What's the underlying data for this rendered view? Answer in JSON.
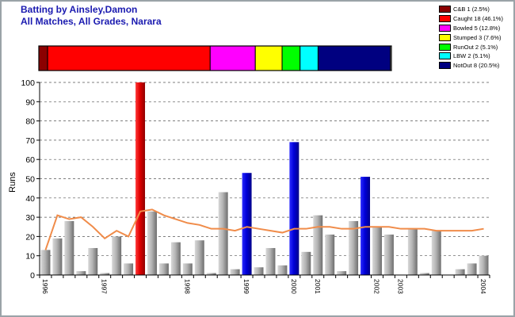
{
  "header": {
    "title_line1": "Batting by Ainsley,Damon",
    "title_line2": "All Matches, All Grades, Narara"
  },
  "legend": [
    {
      "label": "C&B 1 (2.5%)",
      "color": "#8b0000"
    },
    {
      "label": "Caught 18 (46.1%)",
      "color": "#ff0000"
    },
    {
      "label": "Bowled 5 (12.8%)",
      "color": "#ff00ff"
    },
    {
      "label": "Stumped 3 (7.6%)",
      "color": "#ffff00"
    },
    {
      "label": "RunOut 2 (5.1%)",
      "color": "#00ff00"
    },
    {
      "label": "LBW 2 (5.1%)",
      "color": "#00ffff"
    },
    {
      "label": "NotOut 8 (20.5%)",
      "color": "#000080"
    }
  ],
  "chart_data": {
    "type": "bar",
    "ylabel": "Runs",
    "ylim": [
      0,
      100
    ],
    "yticks": [
      0,
      10,
      20,
      30,
      40,
      50,
      60,
      70,
      80,
      90,
      100
    ],
    "grid": "horizontal dashed",
    "dismissal_bar": [
      {
        "kind": "C&B",
        "pct": 2.5,
        "color": "#8b0000"
      },
      {
        "kind": "Caught",
        "pct": 46.1,
        "color": "#ff0000"
      },
      {
        "kind": "Bowled",
        "pct": 12.8,
        "color": "#ff00ff"
      },
      {
        "kind": "Stumped",
        "pct": 7.6,
        "color": "#ffff00"
      },
      {
        "kind": "RunOut",
        "pct": 5.1,
        "color": "#00ff00"
      },
      {
        "kind": "LBW",
        "pct": 5.1,
        "color": "#00ffff"
      },
      {
        "kind": "NotOut",
        "pct": 20.5,
        "color": "#000080"
      }
    ],
    "innings": [
      {
        "runs": 13,
        "type": "gray"
      },
      {
        "runs": 19,
        "type": "gray"
      },
      {
        "runs": 28,
        "type": "gray"
      },
      {
        "runs": 2,
        "type": "gray"
      },
      {
        "runs": 14,
        "type": "gray"
      },
      {
        "runs": 1,
        "type": "gray"
      },
      {
        "runs": 20,
        "type": "gray"
      },
      {
        "runs": 6,
        "type": "gray"
      },
      {
        "runs": 100,
        "type": "red"
      },
      {
        "runs": 33,
        "type": "gray"
      },
      {
        "runs": 6,
        "type": "gray"
      },
      {
        "runs": 17,
        "type": "gray"
      },
      {
        "runs": 6,
        "type": "gray"
      },
      {
        "runs": 18,
        "type": "gray"
      },
      {
        "runs": 1,
        "type": "gray"
      },
      {
        "runs": 43,
        "type": "gray"
      },
      {
        "runs": 3,
        "type": "gray"
      },
      {
        "runs": 53,
        "type": "blue"
      },
      {
        "runs": 4,
        "type": "gray"
      },
      {
        "runs": 14,
        "type": "gray"
      },
      {
        "runs": 5,
        "type": "gray"
      },
      {
        "runs": 69,
        "type": "blue"
      },
      {
        "runs": 12,
        "type": "gray"
      },
      {
        "runs": 31,
        "type": "gray"
      },
      {
        "runs": 21,
        "type": "gray"
      },
      {
        "runs": 2,
        "type": "gray"
      },
      {
        "runs": 28,
        "type": "gray"
      },
      {
        "runs": 51,
        "type": "blue"
      },
      {
        "runs": 25,
        "type": "gray"
      },
      {
        "runs": 21,
        "type": "gray"
      },
      {
        "runs": 0,
        "type": "gray"
      },
      {
        "runs": 24,
        "type": "gray"
      },
      {
        "runs": 1,
        "type": "gray"
      },
      {
        "runs": 23,
        "type": "gray"
      },
      {
        "runs": 0,
        "type": "gray"
      },
      {
        "runs": 3,
        "type": "gray"
      },
      {
        "runs": 6,
        "type": "gray"
      },
      {
        "runs": 10,
        "type": "gray"
      }
    ],
    "average_line": [
      13,
      31,
      29,
      30,
      25,
      19,
      23,
      20,
      33,
      34,
      31,
      29,
      27,
      26,
      24,
      24,
      23,
      25,
      24,
      23,
      22,
      24,
      24,
      25,
      25,
      24,
      24,
      25,
      25,
      25,
      24,
      24,
      24,
      23,
      23,
      23,
      23,
      24
    ],
    "x_labels": [
      {
        "label": "1996",
        "at_index": 0
      },
      {
        "label": "1997",
        "at_index": 5
      },
      {
        "label": "1998",
        "at_index": 12
      },
      {
        "label": "1999",
        "at_index": 17
      },
      {
        "label": "2000",
        "at_index": 21
      },
      {
        "label": "2001",
        "at_index": 23
      },
      {
        "label": "2002",
        "at_index": 28
      },
      {
        "label": "2003",
        "at_index": 30
      },
      {
        "label": "2004",
        "at_index": 37
      }
    ],
    "colors": {
      "gray": "#a0a0a0",
      "red": "#dd0000",
      "blue": "#0000cc",
      "line": "#f08c4a",
      "grid": "#555555",
      "axis": "#000000"
    }
  }
}
